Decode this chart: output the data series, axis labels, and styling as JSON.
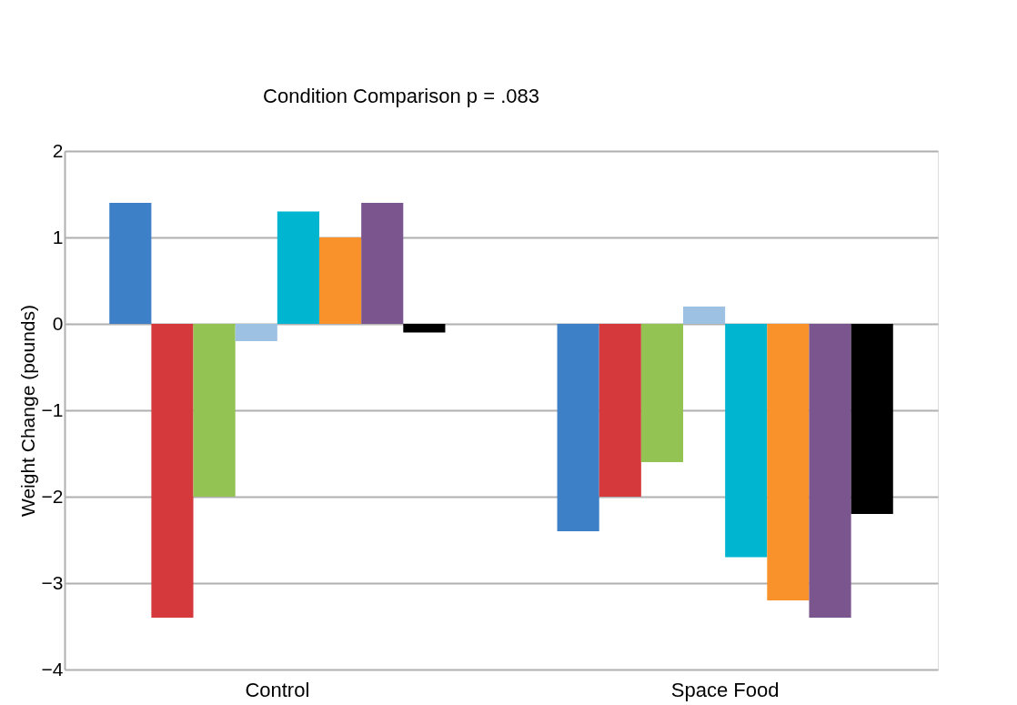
{
  "chart_data": {
    "type": "bar",
    "ylabel": "Weight Change (pounds)",
    "categories": [
      "Control",
      "Space Food"
    ],
    "series": [
      {
        "color": "#3d80c8",
        "values": [
          1.4,
          -2.4
        ]
      },
      {
        "color": "#d6393b",
        "values": [
          -3.4,
          -2.0
        ]
      },
      {
        "color": "#92c353",
        "values": [
          -2.0,
          -1.6
        ]
      },
      {
        "color": "#9dc1e3",
        "values": [
          -0.2,
          0.2
        ]
      },
      {
        "color": "#00b5cf",
        "values": [
          1.3,
          -2.7
        ]
      },
      {
        "color": "#f9922b",
        "values": [
          1.0,
          -3.2
        ]
      },
      {
        "color": "#7a558e",
        "values": [
          1.4,
          -3.4
        ]
      },
      {
        "color": "#000000",
        "values": [
          -0.1,
          -2.2
        ]
      }
    ],
    "ylim": [
      -4,
      2
    ],
    "yticks": [
      -4,
      -3,
      -2,
      -1,
      0,
      1,
      2
    ],
    "grid": "y",
    "legend": false,
    "annotations": [
      "Condition Comparison p = .083"
    ]
  }
}
